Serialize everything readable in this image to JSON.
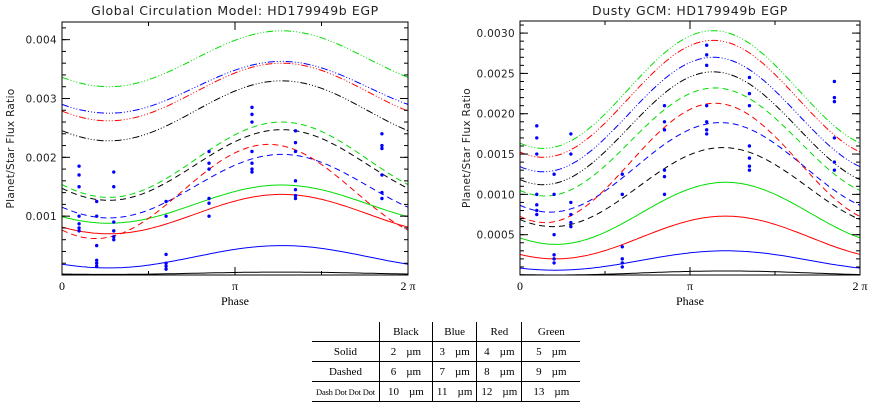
{
  "colors": {
    "Black": "#000000",
    "Blue": "#0000ff",
    "Red": "#ff0000",
    "Green": "#00dd00",
    "points": "#0000ff"
  },
  "chart_data": [
    {
      "type": "line",
      "title": "Global Circulation Model: HD179949b EGP",
      "xlabel": "Phase",
      "ylabel": "Planet/Star Flux Ratio",
      "xlim": [
        0,
        6.2832
      ],
      "ylim": [
        0,
        0.0043
      ],
      "xticks": [
        "0",
        "π",
        "2 π"
      ],
      "yticks": [
        0.001,
        0.002,
        0.003,
        0.004
      ],
      "ytick_labels": [
        "0.001",
        "0.002",
        "0.003",
        "0.004"
      ],
      "grid": false,
      "series": [
        {
          "color": "Black",
          "style": "solid",
          "wavelength": "2 µm",
          "y_min": 1e-05,
          "y_max": 5e-05,
          "peak_phase": 3.99
        },
        {
          "color": "Blue",
          "style": "solid",
          "wavelength": "3 µm",
          "y_min": 0.00012,
          "y_max": 0.0005,
          "peak_phase": 3.99
        },
        {
          "color": "Red",
          "style": "solid",
          "wavelength": "4 µm",
          "y_min": 0.0007,
          "y_max": 0.00137,
          "peak_phase": 3.99
        },
        {
          "color": "Green",
          "style": "solid",
          "wavelength": "5 µm",
          "y_min": 0.00088,
          "y_max": 0.00153,
          "peak_phase": 3.99
        },
        {
          "color": "Black",
          "style": "dashed",
          "wavelength": "6 µm",
          "y_min": 0.00127,
          "y_max": 0.00247,
          "peak_phase": 3.99
        },
        {
          "color": "Blue",
          "style": "dashed",
          "wavelength": "7 µm",
          "y_min": 0.00097,
          "y_max": 0.00205,
          "peak_phase": 3.99
        },
        {
          "color": "Red",
          "style": "dashed",
          "wavelength": "8 µm",
          "y_min": 0.00062,
          "y_max": 0.00222,
          "peak_phase": 3.75
        },
        {
          "color": "Green",
          "style": "dashed",
          "wavelength": "9 µm",
          "y_min": 0.00132,
          "y_max": 0.0026,
          "peak_phase": 3.99
        },
        {
          "color": "Black",
          "style": "dashdotdotdot",
          "wavelength": "10 µm",
          "y_min": 0.00228,
          "y_max": 0.0033,
          "peak_phase": 3.99
        },
        {
          "color": "Blue",
          "style": "dashdotdotdot",
          "wavelength": "11 µm",
          "y_min": 0.00275,
          "y_max": 0.00363,
          "peak_phase": 3.99
        },
        {
          "color": "Red",
          "style": "dashdotdotdot",
          "wavelength": "12 µm",
          "y_min": 0.00262,
          "y_max": 0.0036,
          "peak_phase": 3.99
        },
        {
          "color": "Green",
          "style": "dashdotdotdot",
          "wavelength": "13 µm",
          "y_min": 0.0032,
          "y_max": 0.00415,
          "peak_phase": 3.99
        }
      ],
      "points": [
        {
          "x": 0.31,
          "y": [
            0.00185,
            0.0017,
            0.0015,
            0.001,
            0.00087,
            0.0008,
            0.00075
          ]
        },
        {
          "x": 0.63,
          "y": [
            0.00125,
            0.001,
            0.0005,
            0.00025,
            0.0002,
            0.00015
          ]
        },
        {
          "x": 0.94,
          "y": [
            0.00175,
            0.0015,
            0.0009,
            0.00075,
            0.00065,
            0.0006
          ]
        },
        {
          "x": 1.89,
          "y": [
            0.00125,
            0.001,
            0.00035,
            0.0002,
            0.00015,
            0.0001
          ]
        },
        {
          "x": 2.67,
          "y": [
            0.0021,
            0.0019,
            0.0018,
            0.0013,
            0.00122,
            0.001
          ]
        },
        {
          "x": 3.45,
          "y": [
            0.00285,
            0.00273,
            0.0026,
            0.0021,
            0.0019,
            0.0018,
            0.00175
          ]
        },
        {
          "x": 4.24,
          "y": [
            0.00245,
            0.00225,
            0.0021,
            0.0016,
            0.00145,
            0.00135,
            0.0013
          ]
        },
        {
          "x": 5.81,
          "y": [
            0.0024,
            0.0022,
            0.00215,
            0.0017,
            0.0014,
            0.0013
          ]
        }
      ]
    },
    {
      "type": "line",
      "title": "Dusty GCM: HD179949b EGP",
      "xlabel": "Phase",
      "ylabel": "Planet/Star Flux Ratio",
      "xlim": [
        0,
        6.2832
      ],
      "ylim": [
        0,
        0.00315
      ],
      "xticks": [
        "0",
        "π",
        "2 π"
      ],
      "yticks": [
        0.0005,
        0.001,
        0.0015,
        0.002,
        0.0025,
        0.003
      ],
      "ytick_labels": [
        "0.0005",
        "0.0010",
        "0.0015",
        "0.0020",
        "0.0025",
        "0.0030"
      ],
      "grid": false,
      "series": [
        {
          "color": "Black",
          "style": "solid",
          "wavelength": "2 µm",
          "y_min": 0.0,
          "y_max": 5e-05,
          "peak_phase": 3.8
        },
        {
          "color": "Blue",
          "style": "solid",
          "wavelength": "3 µm",
          "y_min": 6e-05,
          "y_max": 0.0003,
          "peak_phase": 3.8
        },
        {
          "color": "Red",
          "style": "solid",
          "wavelength": "4 µm",
          "y_min": 0.0002,
          "y_max": 0.00073,
          "peak_phase": 3.8
        },
        {
          "color": "Green",
          "style": "solid",
          "wavelength": "5 µm",
          "y_min": 0.00038,
          "y_max": 0.00115,
          "peak_phase": 3.8
        },
        {
          "color": "Black",
          "style": "dashed",
          "wavelength": "6 µm",
          "y_min": 0.0006,
          "y_max": 0.00158,
          "peak_phase": 3.75
        },
        {
          "color": "Blue",
          "style": "dashed",
          "wavelength": "7 µm",
          "y_min": 0.00078,
          "y_max": 0.00189,
          "peak_phase": 3.7
        },
        {
          "color": "Red",
          "style": "dashed",
          "wavelength": "8 µm",
          "y_min": 0.00065,
          "y_max": 0.00213,
          "peak_phase": 3.6
        },
        {
          "color": "Green",
          "style": "dashed",
          "wavelength": "9 µm",
          "y_min": 0.00098,
          "y_max": 0.00232,
          "peak_phase": 3.6
        },
        {
          "color": "Black",
          "style": "dashdotdotdot",
          "wavelength": "10 µm",
          "y_min": 0.00112,
          "y_max": 0.00252,
          "peak_phase": 3.57
        },
        {
          "color": "Blue",
          "style": "dashdotdotdot",
          "wavelength": "11 µm",
          "y_min": 0.00128,
          "y_max": 0.0027,
          "peak_phase": 3.57
        },
        {
          "color": "Red",
          "style": "dashdotdotdot",
          "wavelength": "12 µm",
          "y_min": 0.00146,
          "y_max": 0.00291,
          "peak_phase": 3.57
        },
        {
          "color": "Green",
          "style": "dashdotdotdot",
          "wavelength": "13 µm",
          "y_min": 0.00157,
          "y_max": 0.00303,
          "peak_phase": 3.57
        }
      ],
      "points": [
        {
          "x": 0.31,
          "y": [
            0.00185,
            0.0017,
            0.0015,
            0.001,
            0.00087,
            0.0008,
            0.00075
          ]
        },
        {
          "x": 0.63,
          "y": [
            0.00125,
            0.001,
            0.0005,
            0.00025,
            0.0002,
            0.00015
          ]
        },
        {
          "x": 0.94,
          "y": [
            0.00175,
            0.0015,
            0.0009,
            0.00075,
            0.00065,
            0.0006
          ]
        },
        {
          "x": 1.89,
          "y": [
            0.00125,
            0.001,
            0.00035,
            0.0002,
            0.00015,
            0.0001
          ]
        },
        {
          "x": 2.67,
          "y": [
            0.0021,
            0.0019,
            0.0018,
            0.0013,
            0.00122,
            0.001
          ]
        },
        {
          "x": 3.45,
          "y": [
            0.00285,
            0.00273,
            0.0026,
            0.0021,
            0.0019,
            0.0018,
            0.00175
          ]
        },
        {
          "x": 4.24,
          "y": [
            0.00245,
            0.00225,
            0.0021,
            0.0016,
            0.00145,
            0.00135,
            0.0013
          ]
        },
        {
          "x": 5.81,
          "y": [
            0.0024,
            0.0022,
            0.00215,
            0.0017,
            0.0014,
            0.0013
          ]
        }
      ]
    }
  ],
  "legend": {
    "columns": [
      "Black",
      "Blue",
      "Red",
      "Green"
    ],
    "rows": [
      {
        "label": "Solid",
        "values": [
          "2",
          "3",
          "4",
          "5"
        ]
      },
      {
        "label": "Dashed",
        "values": [
          "6",
          "7",
          "8",
          "9"
        ]
      },
      {
        "label": "Dash Dot Dot Dot",
        "values": [
          "10",
          "11",
          "12",
          "13"
        ]
      }
    ],
    "unit": "µm"
  }
}
